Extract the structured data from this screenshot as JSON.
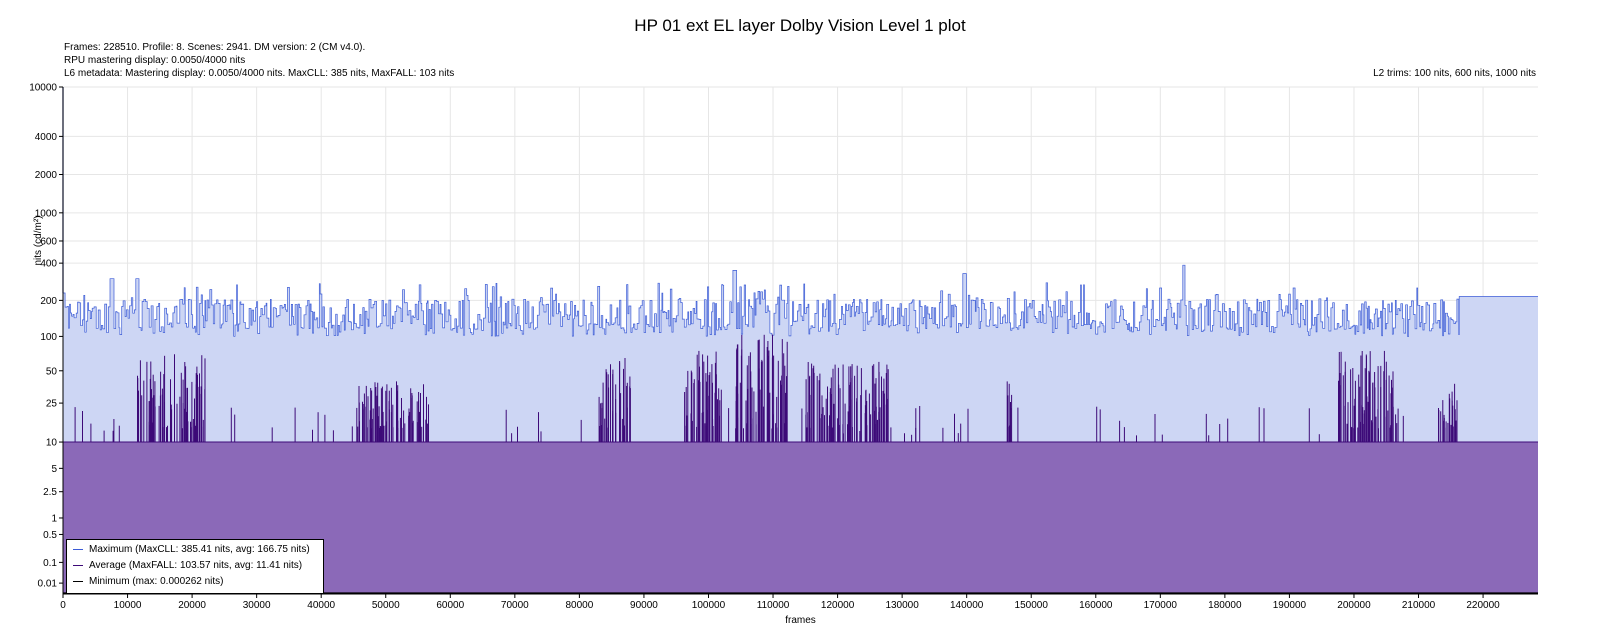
{
  "title": "HP 01 ext EL layer Dolby Vision Level 1 plot",
  "info": {
    "line1": "Frames: 228510. Profile: 8. Scenes: 2941. DM version: 2 (CM v4.0).",
    "line2": "RPU mastering display: 0.0050/4000 nits",
    "line3": "L6 metadata: Mastering display: 0.0050/4000 nits. MaxCLL: 385 nits, MaxFALL: 103 nits",
    "l2_trims": "L2 trims: 100 nits, 600 nits, 1000 nits"
  },
  "colors": {
    "max_line": "#3b5bd6",
    "max_fill": "#cdd6f4",
    "avg_line": "#3d0a78",
    "avg_fill": "#8b69b8",
    "min_line": "#000000",
    "grid": "#e6e6e6"
  },
  "chart_data": {
    "type": "area",
    "title": "HP 01 ext EL layer Dolby Vision Level 1 plot",
    "xlabel": "frames",
    "ylabel": "nits (cd/m²)",
    "xlim": [
      0,
      228510
    ],
    "x_ticks": [
      0,
      10000,
      20000,
      30000,
      40000,
      50000,
      60000,
      70000,
      80000,
      90000,
      100000,
      110000,
      120000,
      130000,
      140000,
      150000,
      160000,
      170000,
      180000,
      190000,
      200000,
      210000,
      220000
    ],
    "y_scale": "pq",
    "y_ticks": [
      0.01,
      0.1,
      0.5,
      1,
      2.5,
      5,
      10,
      25,
      50,
      100,
      200,
      400,
      600,
      1000,
      2000,
      4000,
      10000
    ],
    "y_tick_labels": [
      "0.01",
      "0.1",
      "0.5",
      "1",
      "2.5",
      "5",
      "10",
      "25",
      "50",
      "100",
      "200",
      "400",
      "600",
      "1000",
      "2000",
      "4000",
      "10000"
    ],
    "legend_position": "bottom-left",
    "series": [
      {
        "name": "Maximum",
        "legend": "Maximum (MaxCLL: 385.41 nits, avg: 166.75 nits)",
        "max": 385.41,
        "avg": 166.75,
        "typical_range": [
          100,
          300
        ],
        "peaks": [
          {
            "x": 7500,
            "y": 300
          },
          {
            "x": 11500,
            "y": 300
          },
          {
            "x": 104000,
            "y": 350
          },
          {
            "x": 139500,
            "y": 330
          },
          {
            "x": 173500,
            "y": 385.41
          }
        ],
        "tail": {
          "from_frame": 216300,
          "to_frame": 228510,
          "value": 215
        }
      },
      {
        "name": "Average",
        "legend": "Average (MaxFALL: 103.57 nits, avg: 11.41 nits)",
        "max": 103.57,
        "avg": 11.41,
        "baseline": 10,
        "bursts": [
          {
            "from": 11500,
            "to": 22000,
            "peak": 70
          },
          {
            "from": 45500,
            "to": 57000,
            "peak": 40
          },
          {
            "from": 83000,
            "to": 88000,
            "peak": 65
          },
          {
            "from": 96000,
            "to": 102000,
            "peak": 75
          },
          {
            "from": 104000,
            "to": 112500,
            "peak": 103.57
          },
          {
            "from": 115000,
            "to": 128000,
            "peak": 60
          },
          {
            "from": 146000,
            "to": 147000,
            "peak": 40
          },
          {
            "from": 197500,
            "to": 207000,
            "peak": 75
          },
          {
            "from": 213000,
            "to": 216000,
            "peak": 38
          }
        ]
      },
      {
        "name": "Minimum",
        "legend": "Minimum (max: 0.000262 nits)",
        "max": 0.000262
      }
    ]
  }
}
